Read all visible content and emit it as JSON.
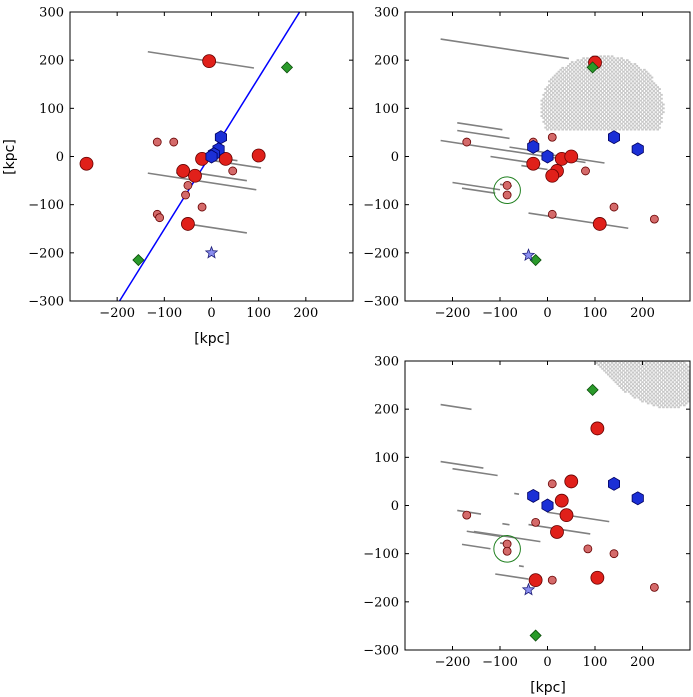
{
  "chart_data": [
    {
      "type": "scatter",
      "panel": "top-left",
      "xlabel": "[kpc]",
      "ylabel": "[kpc]",
      "xlim": [
        -300,
        300
      ],
      "ylim": [
        -300,
        300
      ],
      "xticks": [
        -200,
        -100,
        0,
        100,
        200
      ],
      "yticks": [
        -300,
        -200,
        -100,
        0,
        100,
        200,
        300
      ],
      "region": "ellipse",
      "region_center": [
        235,
        65
      ],
      "region_semi": [
        105,
        120
      ],
      "region_cut": [
        -1,
        0.8,
        140
      ],
      "fit_line": {
        "points": [
          [
            -195,
            -300
          ],
          [
            190,
            305
          ]
        ],
        "color": "#0000ff"
      },
      "large_red": [
        [
          -265,
          -15
        ],
        [
          -5,
          198
        ],
        [
          -60,
          -30
        ],
        [
          -35,
          -40
        ],
        [
          -50,
          -140
        ],
        [
          -20,
          -5
        ],
        [
          30,
          -5
        ],
        [
          100,
          2
        ]
      ],
      "small_red": [
        [
          -115,
          30
        ],
        [
          -80,
          30
        ],
        [
          -55,
          -80
        ],
        [
          -50,
          -60
        ],
        [
          -115,
          -120
        ],
        [
          -110,
          -127
        ],
        [
          -20,
          -105
        ],
        [
          45,
          -30
        ]
      ],
      "blue": [
        [
          20,
          40
        ],
        [
          15,
          15
        ],
        [
          5,
          5
        ],
        [
          0,
          0
        ]
      ],
      "green": [
        [
          160,
          185
        ],
        [
          -155,
          -215
        ]
      ],
      "star": [
        [
          0,
          -200
        ]
      ],
      "segments": [
        [
          -135,
          95
        ],
        [
          -135,
          90
        ],
        [
          -50,
          75
        ],
        [
          -75,
          -40
        ],
        [
          -40,
          75
        ],
        [
          -20,
          105
        ],
        [
          30,
          55
        ]
      ],
      "circle": null,
      "segment_color": "#808080",
      "region_color": "#c8c8c8"
    },
    {
      "type": "scatter",
      "panel": "top-right",
      "xlabel": "",
      "ylabel": "",
      "xlim": [
        -300,
        300
      ],
      "ylim": [
        -300,
        300
      ],
      "xticks": [
        -200,
        -100,
        0,
        100,
        200
      ],
      "yticks": [
        -300,
        -200,
        -100,
        0,
        100,
        200,
        300
      ],
      "region": "ellipse",
      "region_center": [
        115,
        100
      ],
      "region_semi": [
        130,
        110
      ],
      "region_cut": [
        0,
        1,
        55
      ],
      "fit_line": null,
      "large_red": [
        [
          100,
          195
        ],
        [
          30,
          -5
        ],
        [
          20,
          -30
        ],
        [
          50,
          0
        ],
        [
          -30,
          -15
        ],
        [
          10,
          -40
        ],
        [
          110,
          -140
        ]
      ],
      "small_red": [
        [
          -170,
          30
        ],
        [
          -30,
          30
        ],
        [
          10,
          40
        ],
        [
          -85,
          -60
        ],
        [
          -85,
          -80
        ],
        [
          80,
          -30
        ],
        [
          140,
          -105
        ],
        [
          225,
          -130
        ],
        [
          10,
          -120
        ]
      ],
      "blue": [
        [
          -30,
          20
        ],
        [
          0,
          0
        ],
        [
          140,
          40
        ],
        [
          190,
          15
        ]
      ],
      "green": [
        [
          95,
          185
        ],
        [
          -25,
          -215
        ]
      ],
      "star": [
        [
          -40,
          -205
        ]
      ],
      "segments": [
        [
          -225,
          45
        ],
        [
          -225,
          80
        ],
        [
          -55,
          0
        ],
        [
          -80,
          0
        ],
        [
          -40,
          -30
        ],
        [
          60,
          60
        ],
        [
          -40,
          170
        ],
        [
          0,
          120
        ],
        [
          -190,
          -80
        ],
        [
          -190,
          -95
        ],
        [
          -100,
          -75
        ],
        [
          -180,
          -110
        ],
        [
          -15,
          -120
        ],
        [
          -100,
          -200
        ]
      ],
      "circle": [
        -85,
        -70,
        28
      ],
      "segment_color": "#808080",
      "region_color": "#c8c8c8"
    },
    {
      "type": "scatter",
      "panel": "bottom-right",
      "xlabel": "[kpc]",
      "ylabel": "",
      "xlim": [
        -300,
        300
      ],
      "ylim": [
        -300,
        300
      ],
      "xticks": [
        -200,
        -100,
        0,
        100,
        200
      ],
      "yticks": [
        -300,
        -200,
        -100,
        0,
        100,
        200,
        300
      ],
      "region": "rotated-ellipse",
      "region_center": [
        195,
        300
      ],
      "region_semi": [
        135,
        70
      ],
      "region_angle": -38,
      "fit_line": null,
      "large_red": [
        [
          105,
          160
        ],
        [
          50,
          50
        ],
        [
          30,
          10
        ],
        [
          20,
          -55
        ],
        [
          -25,
          -155
        ],
        [
          105,
          -150
        ],
        [
          40,
          -20
        ]
      ],
      "small_red": [
        [
          -170,
          -20
        ],
        [
          -25,
          -35
        ],
        [
          10,
          45
        ],
        [
          -85,
          -80
        ],
        [
          -85,
          -95
        ],
        [
          85,
          -90
        ],
        [
          140,
          -100
        ],
        [
          225,
          -170
        ],
        [
          10,
          -155
        ]
      ],
      "blue": [
        [
          -30,
          20
        ],
        [
          0,
          0
        ],
        [
          140,
          45
        ],
        [
          190,
          15
        ]
      ],
      "green": [
        [
          95,
          240
        ],
        [
          -25,
          -270
        ]
      ],
      "star": [
        [
          -40,
          -175
        ]
      ],
      "segments": [
        [
          -225,
          -160
        ],
        [
          -225,
          -135
        ],
        [
          -60,
          -70
        ],
        [
          -80,
          -95
        ],
        [
          -40,
          -110
        ],
        [
          -50,
          -60
        ],
        [
          0,
          130
        ],
        [
          -40,
          90
        ],
        [
          -190,
          -140
        ],
        [
          -200,
          -105
        ],
        [
          -100,
          -85
        ],
        [
          -180,
          -120
        ],
        [
          -15,
          -155
        ],
        [
          -100,
          -170
        ]
      ],
      "circle": [
        -85,
        -90,
        28
      ],
      "segment_color": "#808080",
      "region_color": "#c8c8c8"
    }
  ]
}
